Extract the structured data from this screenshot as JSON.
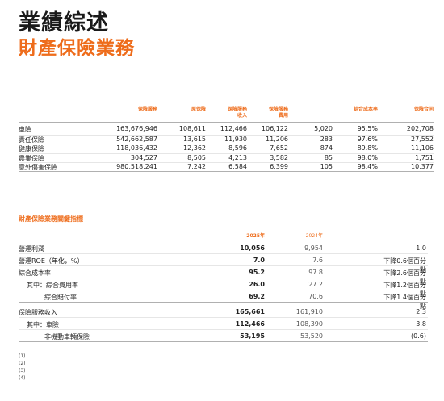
{
  "title": "業績綜述",
  "subtitle": "財產保險業務",
  "premium_table": {
    "period_label_line1": "",
    "period_label_line2": "",
    "headers": [
      {
        "line1": "保險服務",
        "line2": ""
      },
      {
        "line1": "原保險",
        "line2": ""
      },
      {
        "line1": "保險服務",
        "line2": "收入"
      },
      {
        "line1": "保險服務",
        "line2": "費用"
      },
      {
        "line1": "",
        "line2": ""
      },
      {
        "line1": "綜合成本率",
        "line2": ""
      },
      {
        "line1": "保險合同",
        "line2": ""
      }
    ],
    "rows": [
      {
        "label": "車險",
        "values": [
          "163,676,946",
          "108,611",
          "112,466",
          "106,122",
          "5,020",
          "95.5%",
          "202,708"
        ]
      },
      {
        "label": "責任保險",
        "values": [
          "542,662,587",
          "13,615",
          "11,930",
          "11,206",
          "283",
          "97.6%",
          "27,552"
        ]
      },
      {
        "label": "健康保險",
        "values": [
          "118,036,432",
          "12,362",
          "8,596",
          "7,652",
          "874",
          "89.8%",
          "11,106"
        ]
      },
      {
        "label": "農業保險",
        "values": [
          "304,527",
          "8,505",
          "4,213",
          "3,582",
          "85",
          "98.0%",
          "1,751"
        ]
      },
      {
        "label": "意外傷害保險",
        "values": [
          "980,518,241",
          "7,242",
          "6,584",
          "6,399",
          "105",
          "98.4%",
          "10,377"
        ]
      }
    ],
    "note": ""
  },
  "kpi_table": {
    "title": "財產保險業務關鍵指標",
    "sub_line1": "",
    "sub_line2": "",
    "header_current": "2025年",
    "header_prior": "2024年",
    "header_change": "",
    "rows": [
      {
        "label": "營運利潤",
        "indent": 0,
        "current": "10,056",
        "prior": "9,954",
        "change": "1.0",
        "group_end": false
      },
      {
        "label": "營運ROE（年化，%）",
        "indent": 0,
        "current": "7.0",
        "prior": "7.6",
        "change": "下降0.6個百分點",
        "group_end": false
      },
      {
        "label": "綜合成本率",
        "indent": 0,
        "current": "95.2",
        "prior": "97.8",
        "change": "下降2.6個百分點",
        "group_end": false
      },
      {
        "label": "其中：綜合費用率",
        "indent": 1,
        "current": "26.0",
        "prior": "27.2",
        "change": "下降1.2個百分點",
        "group_end": false
      },
      {
        "label": "綜合賠付率",
        "indent": 2,
        "current": "69.2",
        "prior": "70.6",
        "change": "下降1.4個百分點",
        "group_end": true
      },
      {
        "label": "保險服務收入",
        "indent": 0,
        "current": "165,661",
        "prior": "161,910",
        "change": "2.3",
        "group_end": false
      },
      {
        "label": "其中：車險",
        "indent": 1,
        "current": "112,466",
        "prior": "108,390",
        "change": "3.8",
        "group_end": false
      },
      {
        "label": "非機動車輛保險",
        "indent": 2,
        "current": "53,195",
        "prior": "53,520",
        "change": "(0.6)",
        "group_end": true
      }
    ]
  },
  "footnotes": [
    {
      "marker": "(1)",
      "text": ""
    },
    {
      "marker": "(2)",
      "text": ""
    },
    {
      "marker": "(3)",
      "text": ""
    },
    {
      "marker": "(4)",
      "text": ""
    }
  ]
}
